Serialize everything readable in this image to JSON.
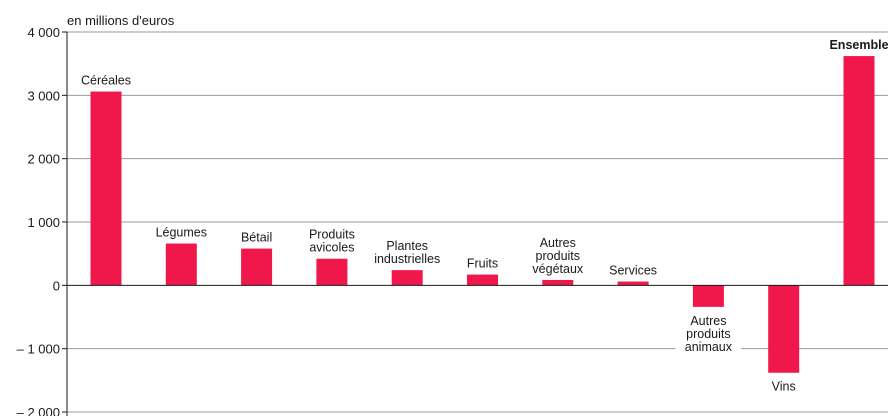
{
  "chart_data": {
    "type": "bar",
    "unit_label": "en millions d'euros",
    "categories": [
      "Céréales",
      "Légumes",
      "Bétail",
      "Produits avicoles",
      "Plantes industrielles",
      "Fruits",
      "Autres produits végétaux",
      "Services",
      "Autres produits animaux",
      "Vins",
      "Ensemble"
    ],
    "label_lines": [
      [
        "Céréales"
      ],
      [
        "Légumes"
      ],
      [
        "Bétail"
      ],
      [
        "Produits",
        "avicoles"
      ],
      [
        "Plantes",
        "industrielles"
      ],
      [
        "Fruits"
      ],
      [
        "Autres",
        "produits",
        "végétaux"
      ],
      [
        "Services"
      ],
      [
        "Autres",
        "produits",
        "animaux"
      ],
      [
        "Vins"
      ],
      [
        "Ensemble"
      ]
    ],
    "values": [
      3060,
      660,
      580,
      420,
      240,
      170,
      85,
      60,
      -340,
      -1380,
      3620
    ],
    "highlight_category": "Ensemble",
    "ylim": [
      -2000,
      4000
    ],
    "y_ticks": [
      4000,
      3000,
      2000,
      1000,
      0,
      -1000,
      -2000
    ],
    "y_tick_labels": [
      "4 000",
      "3 000",
      "2 000",
      "1 000",
      "0",
      "– 1 000",
      "– 2 000"
    ],
    "grid": true,
    "colors": {
      "bar": "#f0174b",
      "grid": "#9a9a9a",
      "axis": "#1a1a1a",
      "text": "#1a1a1a"
    }
  }
}
